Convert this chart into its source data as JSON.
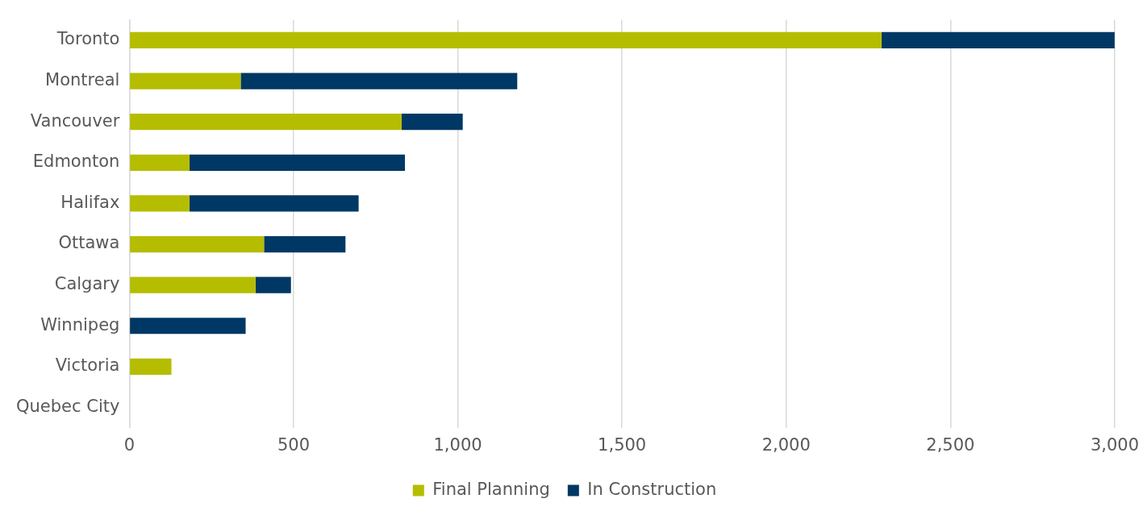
{
  "chart_data": {
    "type": "bar",
    "orientation": "horizontal",
    "stacked": true,
    "categories": [
      "Toronto",
      "Montreal",
      "Vancouver",
      "Edmonton",
      "Halifax",
      "Ottawa",
      "Calgary",
      "Winnipeg",
      "Victoria",
      "Quebec City"
    ],
    "series": [
      {
        "name": "Final Planning",
        "color": "#b5bd00",
        "values": [
          2290,
          339,
          829,
          183,
          183,
          410,
          384,
          0,
          128,
          0
        ]
      },
      {
        "name": "In Construction",
        "color": "#003865",
        "values": [
          710,
          842,
          186,
          656,
          515,
          248,
          108,
          354,
          0,
          0
        ]
      }
    ],
    "xlim": [
      0,
      3000
    ],
    "xticks": [
      {
        "value": 0,
        "label": "0"
      },
      {
        "value": 500,
        "label": "500"
      },
      {
        "value": 1000,
        "label": "1,000"
      },
      {
        "value": 1500,
        "label": "1,500"
      },
      {
        "value": 2000,
        "label": "2,000"
      },
      {
        "value": 2500,
        "label": "2,500"
      },
      {
        "value": 3000,
        "label": "3,000"
      }
    ],
    "grid": "x",
    "legend": "bottom"
  }
}
